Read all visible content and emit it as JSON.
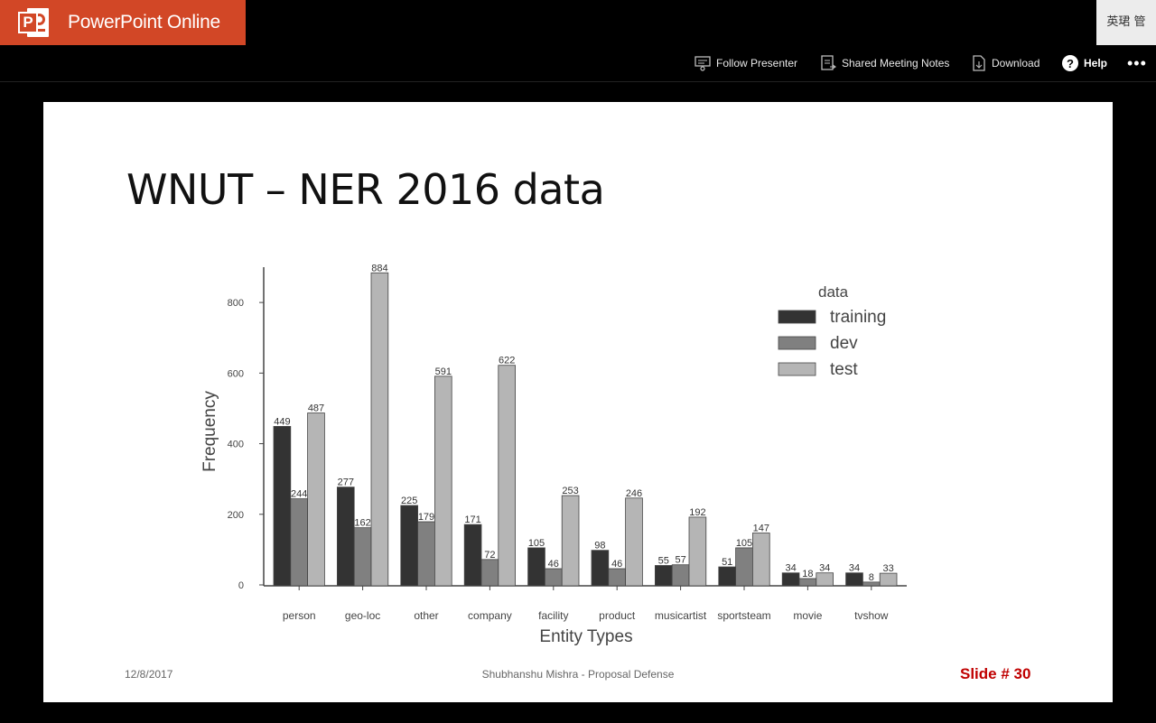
{
  "app": {
    "name": "PowerPoint Online",
    "user": "英珺 管",
    "brand_color": "#d24726"
  },
  "toolbar": {
    "follow_presenter": "Follow Presenter",
    "shared_notes": "Shared Meeting Notes",
    "download": "Download",
    "help": "Help",
    "more": "•••"
  },
  "slide": {
    "title": "WNUT – NER 2016 data",
    "date": "12/8/2017",
    "footer": "Shubhanshu Mishra - Proposal Defense",
    "slide_number": "Slide # 30"
  },
  "chart_data": {
    "type": "bar",
    "categories": [
      "person",
      "geo-loc",
      "other",
      "company",
      "facility",
      "product",
      "musicartist",
      "sportsteam",
      "movie",
      "tvshow"
    ],
    "series": [
      {
        "name": "training",
        "values": [
          449,
          277,
          225,
          171,
          105,
          98,
          55,
          51,
          34,
          34
        ],
        "color": "#333333"
      },
      {
        "name": "dev",
        "values": [
          244,
          162,
          179,
          72,
          46,
          46,
          57,
          105,
          18,
          8
        ],
        "color": "#808080"
      },
      {
        "name": "test",
        "values": [
          487,
          884,
          591,
          622,
          253,
          246,
          192,
          147,
          34,
          33
        ],
        "color": "#b5b5b5"
      }
    ],
    "xlabel": "Entity Types",
    "ylabel": "Frequency",
    "yticks": [
      0,
      200,
      400,
      600,
      800
    ],
    "ylim": [
      0,
      900
    ],
    "legend_title": "data",
    "legend_position": "top-right"
  }
}
